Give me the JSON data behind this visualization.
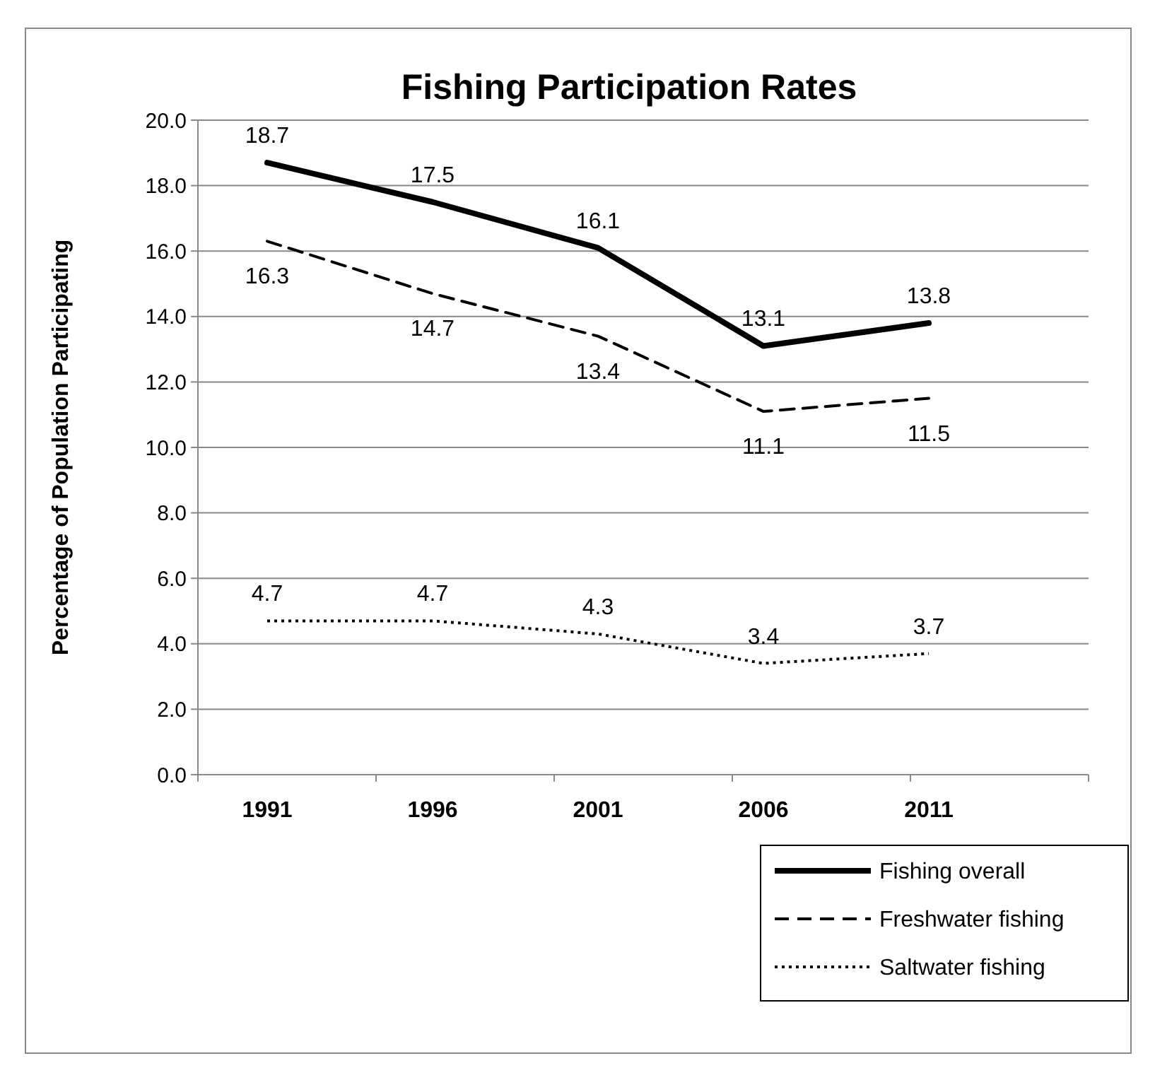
{
  "chart_data": {
    "type": "line",
    "title": "Fishing Participation Rates",
    "ylabel": "Percentage of Population Participating",
    "categories": [
      "1991",
      "1996",
      "2001",
      "2006",
      "2011"
    ],
    "series": [
      {
        "name": "Fishing overall",
        "color": "#000000",
        "line_style": "solid",
        "values": [
          18.7,
          17.5,
          16.1,
          13.1,
          13.8
        ]
      },
      {
        "name": "Freshwater fishing",
        "color": "#000000",
        "line_style": "dashed",
        "values": [
          16.3,
          14.7,
          13.4,
          11.1,
          11.5
        ]
      },
      {
        "name": "Saltwater fishing",
        "color": "#000000",
        "line_style": "dotted",
        "values": [
          4.7,
          4.7,
          4.3,
          3.4,
          3.7
        ]
      }
    ],
    "ylim": [
      0,
      20
    ],
    "yticks": [
      {
        "value": 0,
        "label": "0.0"
      },
      {
        "value": 2,
        "label": "2.0"
      },
      {
        "value": 4,
        "label": "4.0"
      },
      {
        "value": 6,
        "label": "6.0"
      },
      {
        "value": 8,
        "label": "8.0"
      },
      {
        "value": 10,
        "label": "10.0"
      },
      {
        "value": 12,
        "label": "12.0"
      },
      {
        "value": 14,
        "label": "14.0"
      },
      {
        "value": 16,
        "label": "16.0"
      },
      {
        "value": 18,
        "label": "18.0"
      },
      {
        "value": 20,
        "label": "20.0"
      }
    ],
    "grid": "y",
    "legend": "bottom right",
    "data_labels": true,
    "marker": "none"
  }
}
